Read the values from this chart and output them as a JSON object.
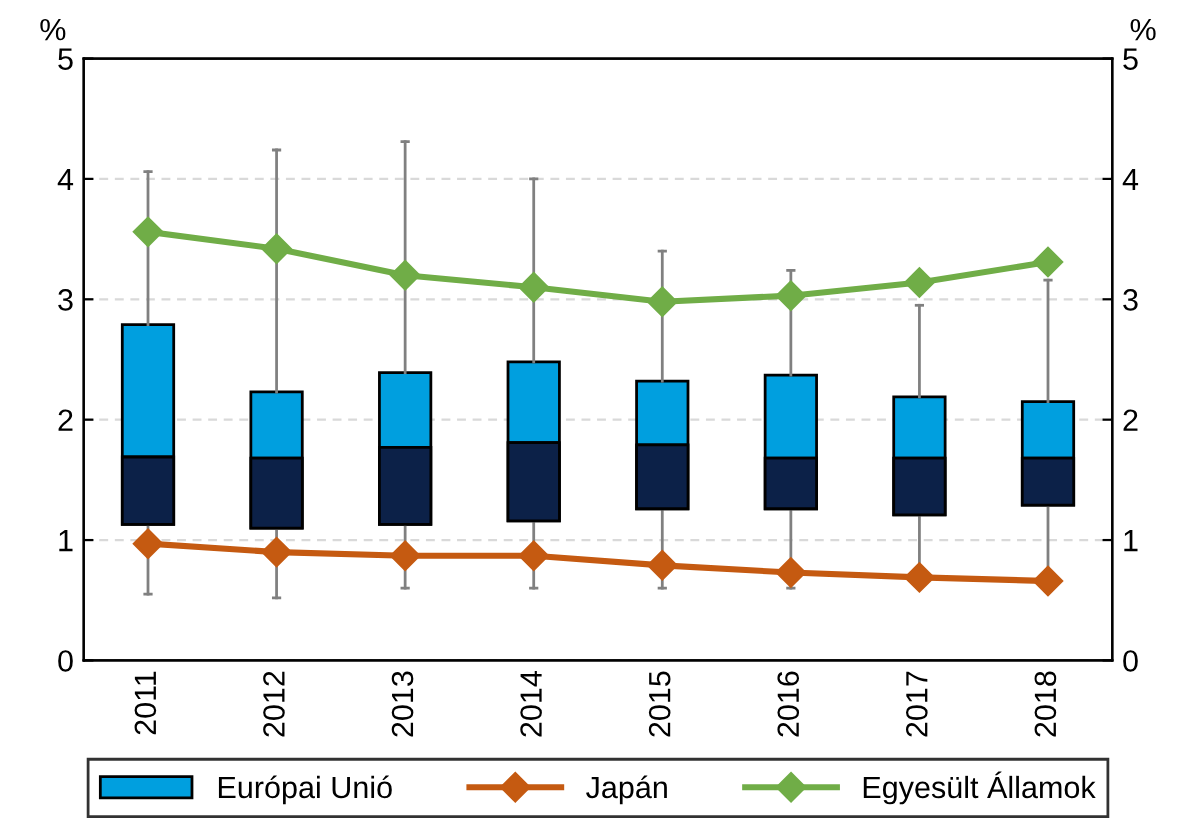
{
  "chart_data": {
    "type": "box",
    "categories": [
      "2011",
      "2012",
      "2013",
      "2014",
      "2015",
      "2016",
      "2017",
      "2018"
    ],
    "ylabel": "%",
    "y2label": "%",
    "ylim": [
      0,
      5
    ],
    "yticks": [
      0,
      1,
      2,
      3,
      4,
      5
    ],
    "y2lim": [
      0,
      5
    ],
    "y2ticks": [
      0,
      1,
      2,
      3,
      4,
      5
    ],
    "grid": "y",
    "legend": "bottom",
    "marker": "diamond",
    "line_style": "solid",
    "series": [
      {
        "name": "Európai Unió",
        "color": "#009fdf",
        "boxes": [
          {
            "low": 0.55,
            "q1": 1.13,
            "median": 1.69,
            "q3": 2.79,
            "high": 4.06
          },
          {
            "low": 0.52,
            "q1": 1.1,
            "median": 1.68,
            "q3": 2.23,
            "high": 4.24
          },
          {
            "low": 0.6,
            "q1": 1.13,
            "median": 1.77,
            "q3": 2.39,
            "high": 4.31
          },
          {
            "low": 0.6,
            "q1": 1.16,
            "median": 1.81,
            "q3": 2.48,
            "high": 4.0
          },
          {
            "low": 0.6,
            "q1": 1.26,
            "median": 1.79,
            "q3": 2.32,
            "high": 3.4
          },
          {
            "low": 0.6,
            "q1": 1.26,
            "median": 1.68,
            "q3": 2.37,
            "high": 3.24
          },
          {
            "low": 0.68,
            "q1": 1.21,
            "median": 1.68,
            "q3": 2.19,
            "high": 2.95
          },
          {
            "low": 0.66,
            "q1": 1.29,
            "median": 1.68,
            "q3": 2.15,
            "high": 3.16
          }
        ]
      },
      {
        "type": "line",
        "name": "Japán",
        "color": "#c55a11",
        "values": [
          0.97,
          0.9,
          0.87,
          0.87,
          0.79,
          0.73,
          0.69,
          0.66
        ]
      },
      {
        "type": "line",
        "name": "Egyesült Államok",
        "color": "#70ad47",
        "values": [
          3.56,
          3.42,
          3.2,
          3.1,
          2.98,
          3.03,
          3.14,
          3.31
        ]
      }
    ]
  }
}
